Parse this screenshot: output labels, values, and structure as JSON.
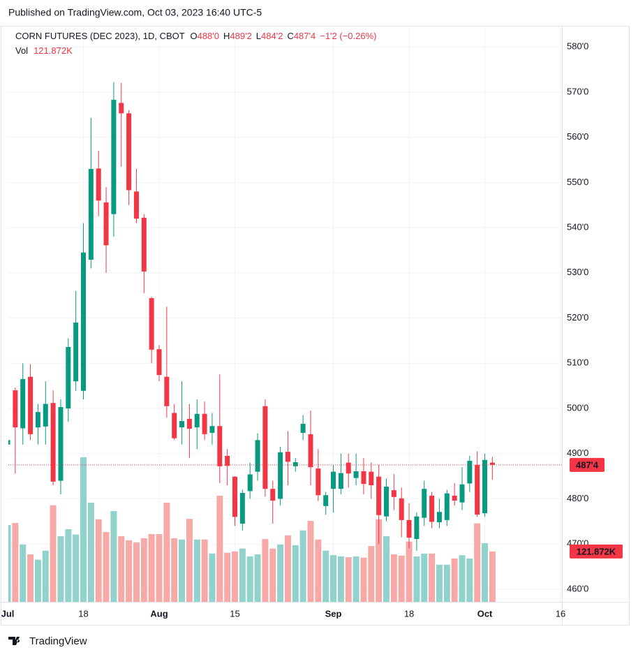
{
  "published": "Published on TradingView.com, Oct 03, 2023 16:40 UTC-5",
  "footer": "TradingView",
  "chart_data": {
    "type": "candlestick",
    "title": "CORN FUTURES (DEC 2023), 1D, CBOT",
    "legend_values": [
      {
        "label": "O",
        "value": "488'0"
      },
      {
        "label": "H",
        "value": "489'2"
      },
      {
        "label": "L",
        "value": "484'2"
      },
      {
        "label": "C",
        "value": "487'4"
      }
    ],
    "change": "−1'2 (−0.26%)",
    "volume_title": "Vol",
    "up_color": "#089981",
    "down_color": "#f23645",
    "up_volume_color": "#92d2cc",
    "down_volume_color": "#f7a9a7",
    "grid": true,
    "categories": [
      "Jul",
      null,
      null,
      null,
      null,
      null,
      null,
      null,
      null,
      null,
      "18",
      null,
      null,
      null,
      null,
      null,
      null,
      null,
      null,
      null,
      "Aug",
      null,
      null,
      null,
      null,
      null,
      null,
      null,
      null,
      null,
      "15",
      null,
      null,
      null,
      null,
      null,
      null,
      null,
      null,
      null,
      null,
      null,
      null,
      "Sep",
      null,
      null,
      null,
      null,
      null,
      null,
      null,
      null,
      null,
      "18",
      null,
      null,
      null,
      null,
      null,
      null,
      null,
      null,
      null,
      "Oct",
      null,
      null,
      null,
      null,
      null,
      null,
      null,
      null,
      null,
      "16"
    ],
    "open": [
      492,
      504,
      495.6,
      507,
      495.8,
      496,
      501.2,
      484,
      500,
      506,
      503.9,
      532.9,
      553.1,
      545.6,
      543,
      567.6,
      565.3,
      548,
      542.2,
      524.4,
      513.1,
      507,
      499,
      495.8,
      497.7,
      495.8,
      498.8,
      494.6,
      496.1,
      489.5,
      484.9,
      474.5,
      481.7,
      486,
      500.5,
      482.2,
      480,
      490.4,
      487.2,
      494.6,
      494.3,
      486.7,
      478.4,
      482.2,
      482.2,
      488,
      484.6,
      486.1,
      486,
      484.9,
      476.1,
      481.9,
      480.1,
      475.3,
      471.1,
      475.8,
      480.7,
      474.8,
      475.3,
      480.7,
      479.2,
      483.4,
      487.5,
      476.8,
      488,
      null,
      null,
      null,
      null,
      null,
      null,
      null,
      null,
      null
    ],
    "high": [
      494,
      504.6,
      510,
      509.8,
      501,
      506,
      504,
      502,
      515.5,
      526,
      541,
      564.3,
      557,
      549,
      572.2,
      572,
      566,
      553,
      543,
      524.7,
      514,
      522.5,
      501,
      506,
      501,
      502,
      501.5,
      499,
      507.5,
      491,
      485,
      482,
      488,
      494.5,
      502,
      484,
      491.5,
      495,
      489,
      498.5,
      499.5,
      491,
      481.5,
      487.5,
      490,
      490,
      490,
      489,
      488,
      487.5,
      484.5,
      485.5,
      482.5,
      479,
      477,
      484,
      481.5,
      480,
      482,
      483.5,
      487,
      489.5,
      490.5,
      490,
      489.25,
      null,
      null,
      null,
      null,
      null,
      null,
      null,
      null,
      null
    ],
    "low": [
      491,
      485.6,
      492,
      493,
      492,
      492,
      483,
      481,
      497,
      503.9,
      502,
      531,
      542.5,
      530,
      538,
      553.5,
      545,
      541,
      525.5,
      510,
      506,
      498,
      493,
      492,
      489,
      491,
      493,
      492,
      483.5,
      483,
      474,
      473,
      480,
      484,
      480.5,
      474.5,
      478.5,
      483,
      486,
      493,
      483,
      479.5,
      476.5,
      477,
      481,
      482.5,
      483,
      481,
      480,
      470,
      475,
      477.5,
      471.5,
      469,
      468.5,
      474,
      473.5,
      473.5,
      474,
      478.5,
      477.5,
      481.5,
      476,
      476,
      484.25,
      null,
      null,
      null,
      null,
      null,
      null,
      null,
      null,
      null
    ],
    "close": [
      493,
      495.8,
      506.5,
      494.3,
      499.2,
      501,
      483.8,
      500.3,
      513.6,
      519,
      534.5,
      553,
      546,
      536.1,
      568.3,
      565.3,
      548.3,
      542,
      530.3,
      513,
      507.4,
      500.5,
      493.4,
      497.2,
      495.5,
      498.8,
      494.3,
      496.1,
      487.2,
      487.3,
      476,
      481.3,
      485.4,
      493,
      482.2,
      479.6,
      490.3,
      488.2,
      488.1,
      496.6,
      487,
      480.8,
      480.8,
      486,
      485.7,
      485.6,
      486.1,
      483.3,
      483,
      476.4,
      482.7,
      480.4,
      475.3,
      471.4,
      476.1,
      482.2,
      474.9,
      477.1,
      481.2,
      479.6,
      483.2,
      488.4,
      476.5,
      488.6,
      487.5,
      null,
      null,
      null,
      null,
      null,
      null,
      null,
      null,
      null
    ],
    "volume": [
      186000,
      191000,
      139000,
      115000,
      102000,
      124000,
      234000,
      159000,
      176000,
      163000,
      350000,
      240000,
      200000,
      169000,
      220000,
      159000,
      149000,
      144000,
      154000,
      164000,
      164000,
      240000,
      154000,
      151000,
      201000,
      151000,
      151000,
      117000,
      257000,
      119000,
      122000,
      129000,
      110000,
      115000,
      152000,
      129000,
      139000,
      161000,
      137000,
      173000,
      196000,
      151000,
      124000,
      113000,
      110000,
      108000,
      110000,
      107000,
      135000,
      200000,
      159000,
      115000,
      112000,
      146000,
      110000,
      117000,
      117000,
      90000,
      90000,
      105000,
      113000,
      105000,
      190000,
      142000,
      121872,
      null,
      null,
      null,
      null,
      null,
      null,
      null,
      null,
      null
    ],
    "last_volume": {
      "value": 121872,
      "label": "121.872K"
    },
    "last_price": {
      "value": 487.5,
      "label": "487'4"
    },
    "ylim": [
      457.2,
      584.2
    ],
    "yticks": [
      {
        "value": 460,
        "label": "460'0"
      },
      {
        "value": 470,
        "label": "470'0"
      },
      {
        "value": 480,
        "label": "480'0"
      },
      {
        "value": 490,
        "label": "490'0"
      },
      {
        "value": 500,
        "label": "500'0"
      },
      {
        "value": 510,
        "label": "510'0"
      },
      {
        "value": 520,
        "label": "520'0"
      },
      {
        "value": 530,
        "label": "530'0"
      },
      {
        "value": 540,
        "label": "540'0"
      },
      {
        "value": 550,
        "label": "550'0"
      },
      {
        "value": 560,
        "label": "560'0"
      },
      {
        "value": 570,
        "label": "570'0"
      },
      {
        "value": 580,
        "label": "580'0"
      }
    ]
  }
}
